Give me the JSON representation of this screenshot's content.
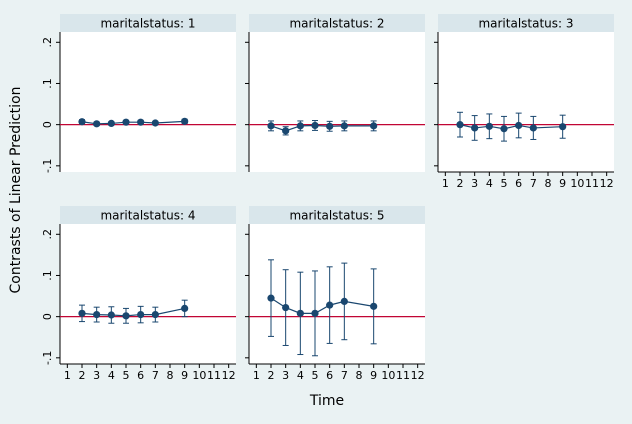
{
  "y_label": "Contrasts of Linear Prediction",
  "x_label": "Time",
  "chart_data": [
    {
      "type": "line",
      "title": "maritalstatus: 1",
      "x": [
        2,
        3,
        4,
        5,
        6,
        7,
        9
      ],
      "values": [
        0.007,
        0.002,
        0.003,
        0.006,
        0.006,
        0.004,
        0.008
      ],
      "errors": [
        0.005,
        0.004,
        0.004,
        0.004,
        0.004,
        0.004,
        0.005
      ],
      "color": "#1a476f",
      "refline": 0,
      "refline_color": "#c10534",
      "xlim": [
        0.5,
        12.5
      ],
      "xticks": [
        1,
        2,
        3,
        4,
        5,
        6,
        7,
        8,
        9,
        10,
        11,
        12
      ],
      "ylim": [
        -0.115,
        0.225
      ],
      "yticks": [
        {
          "value": -0.1,
          "label": "-.1"
        },
        0,
        {
          "value": 0.1,
          "label": ".1"
        },
        {
          "value": 0.2,
          "label": ".2"
        }
      ]
    },
    {
      "type": "line",
      "title": "maritalstatus: 2",
      "x": [
        2,
        3,
        4,
        5,
        6,
        7,
        9
      ],
      "values": [
        -0.003,
        -0.015,
        -0.003,
        -0.002,
        -0.004,
        -0.003,
        -0.003
      ],
      "errors": [
        0.012,
        0.01,
        0.012,
        0.012,
        0.012,
        0.012,
        0.012
      ],
      "color": "#1a476f",
      "refline": 0,
      "refline_color": "#c10534",
      "xlim": [
        0.5,
        12.5
      ],
      "xticks": [
        1,
        2,
        3,
        4,
        5,
        6,
        7,
        8,
        9,
        10,
        11,
        12
      ],
      "ylim": [
        -0.115,
        0.225
      ],
      "yticks": [
        {
          "value": -0.1,
          "label": "-.1"
        },
        0,
        {
          "value": 0.1,
          "label": ".1"
        },
        {
          "value": 0.2,
          "label": ".2"
        }
      ]
    },
    {
      "type": "line",
      "title": "maritalstatus: 3",
      "x": [
        2,
        3,
        4,
        5,
        6,
        7,
        9
      ],
      "values": [
        0.0,
        -0.008,
        -0.004,
        -0.01,
        -0.002,
        -0.008,
        -0.005
      ],
      "errors": [
        0.03,
        0.03,
        0.03,
        0.03,
        0.03,
        0.028,
        0.028
      ],
      "color": "#1a476f",
      "refline": 0,
      "refline_color": "#c10534",
      "xlim": [
        0.5,
        12.5
      ],
      "xticks": [
        1,
        2,
        3,
        4,
        5,
        6,
        7,
        8,
        9,
        10,
        11,
        12
      ],
      "ylim": [
        -0.115,
        0.225
      ],
      "yticks": [
        {
          "value": -0.1,
          "label": "-.1"
        },
        0,
        {
          "value": 0.1,
          "label": ".1"
        },
        {
          "value": 0.2,
          "label": ".2"
        }
      ]
    },
    {
      "type": "line",
      "title": "maritalstatus: 4",
      "x": [
        2,
        3,
        4,
        5,
        6,
        7,
        9
      ],
      "values": [
        0.008,
        0.005,
        0.004,
        0.002,
        0.005,
        0.005,
        0.02
      ],
      "errors": [
        0.02,
        0.018,
        0.02,
        0.018,
        0.02,
        0.018,
        0.02
      ],
      "color": "#1a476f",
      "refline": 0,
      "refline_color": "#c10534",
      "xlim": [
        0.5,
        12.5
      ],
      "xticks": [
        1,
        2,
        3,
        4,
        5,
        6,
        7,
        8,
        9,
        10,
        11,
        12
      ],
      "ylim": [
        -0.115,
        0.225
      ],
      "yticks": [
        {
          "value": -0.1,
          "label": "-.1"
        },
        0,
        {
          "value": 0.1,
          "label": ".1"
        },
        {
          "value": 0.2,
          "label": ".2"
        }
      ]
    },
    {
      "type": "line",
      "title": "maritalstatus: 5",
      "x": [
        2,
        3,
        4,
        5,
        6,
        7,
        9
      ],
      "values": [
        0.045,
        0.022,
        0.008,
        0.008,
        0.028,
        0.037,
        0.025
      ],
      "errors": [
        0.093,
        0.092,
        0.1,
        0.103,
        0.093,
        0.093,
        0.091
      ],
      "color": "#1a476f",
      "refline": 0,
      "refline_color": "#c10534",
      "xlim": [
        0.5,
        12.5
      ],
      "xticks": [
        1,
        2,
        3,
        4,
        5,
        6,
        7,
        8,
        9,
        10,
        11,
        12
      ],
      "ylim": [
        -0.115,
        0.225
      ],
      "yticks": [
        {
          "value": -0.1,
          "label": "-.1"
        },
        0,
        {
          "value": 0.1,
          "label": ".1"
        },
        {
          "value": 0.2,
          "label": ".2"
        }
      ]
    }
  ]
}
